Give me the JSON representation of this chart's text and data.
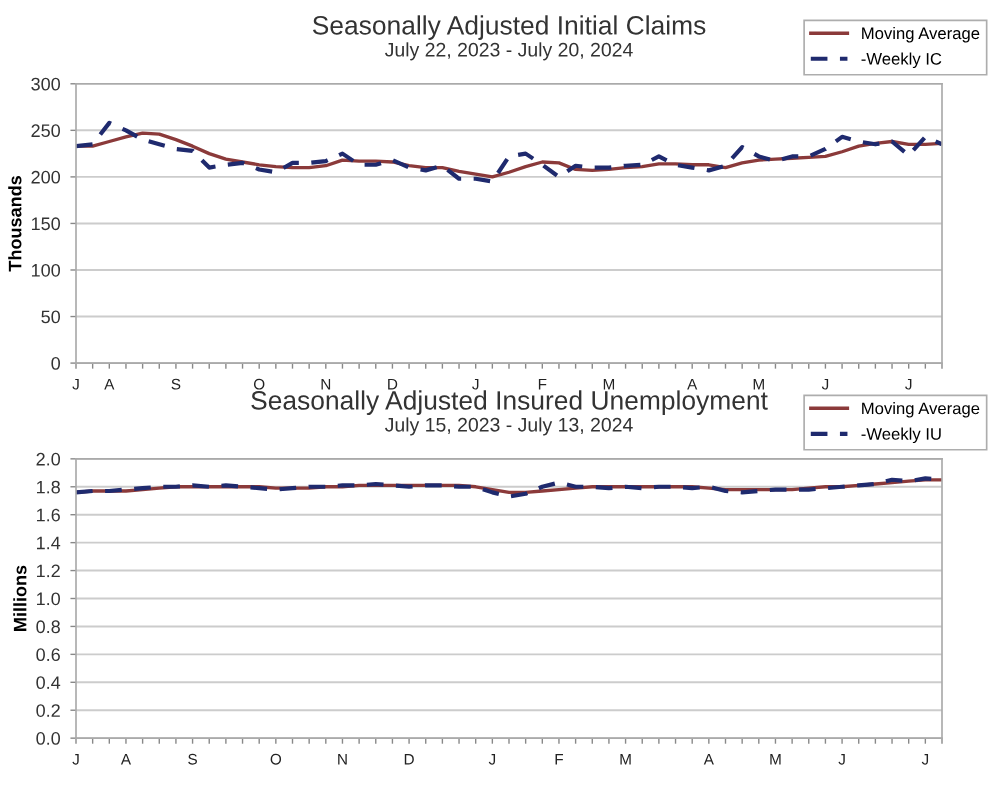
{
  "chart_data": [
    {
      "type": "line",
      "title": "Seasonally Adjusted Initial Claims",
      "subtitle": "July 22, 2023 - July 20, 2024",
      "ylabel": "Thousands",
      "categories": [
        "J",
        null,
        "A",
        null,
        null,
        null,
        "S",
        null,
        null,
        null,
        null,
        "O",
        null,
        null,
        null,
        "N",
        null,
        null,
        null,
        "D",
        null,
        null,
        null,
        null,
        "J",
        null,
        null,
        null,
        "F",
        null,
        null,
        null,
        "M",
        null,
        null,
        null,
        null,
        "A",
        null,
        null,
        null,
        "M",
        null,
        null,
        null,
        "J",
        null,
        null,
        null,
        null,
        "J",
        null,
        null
      ],
      "series": [
        {
          "name": "Moving Average",
          "color": "#8b3a3a",
          "line_style": "solid",
          "values": [
            233,
            233,
            238,
            243,
            247,
            246,
            240,
            233,
            225,
            219,
            216,
            213,
            211,
            210,
            210,
            212,
            218,
            217,
            217,
            216,
            212,
            210,
            210,
            206,
            203,
            200,
            205,
            211,
            216,
            215,
            208,
            207,
            208,
            210,
            211,
            214,
            214,
            213,
            213,
            210,
            215,
            218,
            219,
            220,
            221,
            222,
            227,
            233,
            236,
            238,
            235,
            235,
            236
          ]
        },
        {
          "name": "-Weekly IC",
          "color": "#1f2a6e",
          "line_style": "dashed",
          "values": [
            233,
            235,
            258,
            250,
            240,
            235,
            230,
            228,
            210,
            213,
            215,
            208,
            205,
            215,
            215,
            217,
            225,
            213,
            213,
            218,
            210,
            207,
            212,
            198,
            198,
            195,
            222,
            225,
            213,
            200,
            212,
            210,
            210,
            212,
            213,
            222,
            213,
            210,
            207,
            212,
            232,
            222,
            217,
            222,
            222,
            230,
            243,
            238,
            235,
            238,
            223,
            243,
            235
          ]
        }
      ],
      "ylim": [
        0,
        300
      ],
      "yticks": [
        0,
        50,
        100,
        150,
        200,
        250,
        300
      ],
      "grid": "y",
      "legend": "top right",
      "marker": "none"
    },
    {
      "type": "line",
      "title": "Seasonally Adjusted Insured Unemployment",
      "subtitle": "July 15, 2023 - July 13, 2024",
      "ylabel": "Millions",
      "categories": [
        "J",
        null,
        null,
        "A",
        null,
        null,
        null,
        "S",
        null,
        null,
        null,
        null,
        "O",
        null,
        null,
        null,
        "N",
        null,
        null,
        null,
        "D",
        null,
        null,
        null,
        null,
        "J",
        null,
        null,
        null,
        "F",
        null,
        null,
        null,
        "M",
        null,
        null,
        null,
        null,
        "A",
        null,
        null,
        null,
        "M",
        null,
        null,
        null,
        "J",
        null,
        null,
        null,
        null,
        "J",
        null
      ],
      "series": [
        {
          "name": "Moving Average",
          "color": "#8b3a3a",
          "line_style": "solid",
          "values": [
            1.76,
            1.77,
            1.77,
            1.77,
            1.78,
            1.79,
            1.8,
            1.8,
            1.8,
            1.8,
            1.8,
            1.8,
            1.79,
            1.79,
            1.79,
            1.8,
            1.8,
            1.81,
            1.81,
            1.81,
            1.81,
            1.81,
            1.81,
            1.81,
            1.8,
            1.78,
            1.76,
            1.76,
            1.77,
            1.78,
            1.79,
            1.8,
            1.8,
            1.8,
            1.8,
            1.8,
            1.8,
            1.8,
            1.79,
            1.78,
            1.78,
            1.78,
            1.78,
            1.78,
            1.79,
            1.8,
            1.8,
            1.81,
            1.82,
            1.83,
            1.84,
            1.85,
            1.85
          ]
        },
        {
          "name": "-Weekly IU",
          "color": "#1f2a6e",
          "line_style": "dashed",
          "values": [
            1.76,
            1.77,
            1.77,
            1.78,
            1.79,
            1.8,
            1.8,
            1.81,
            1.8,
            1.81,
            1.8,
            1.79,
            1.78,
            1.79,
            1.8,
            1.8,
            1.81,
            1.81,
            1.82,
            1.81,
            1.8,
            1.81,
            1.81,
            1.8,
            1.8,
            1.76,
            1.73,
            1.75,
            1.8,
            1.83,
            1.8,
            1.8,
            1.79,
            1.8,
            1.79,
            1.8,
            1.8,
            1.79,
            1.8,
            1.77,
            1.76,
            1.77,
            1.78,
            1.78,
            1.78,
            1.79,
            1.8,
            1.81,
            1.82,
            1.85,
            1.84,
            1.86,
            1.85
          ]
        }
      ],
      "ylim": [
        0.0,
        2.0
      ],
      "yticks": [
        {
          "value": 0.0,
          "label": "0.0"
        },
        {
          "value": 0.2,
          "label": "0.2"
        },
        {
          "value": 0.4,
          "label": "0.4"
        },
        {
          "value": 0.6,
          "label": "0.6"
        },
        {
          "value": 0.8,
          "label": "0.8"
        },
        {
          "value": 1.0,
          "label": "1.0"
        },
        {
          "value": 1.2,
          "label": "1.2"
        },
        {
          "value": 1.4,
          "label": "1.4"
        },
        {
          "value": 1.6,
          "label": "1.6"
        },
        {
          "value": 1.8,
          "label": "1.8"
        },
        {
          "value": 2.0,
          "label": "2.0"
        }
      ],
      "grid": "y",
      "legend": "top right",
      "marker": "none"
    }
  ]
}
